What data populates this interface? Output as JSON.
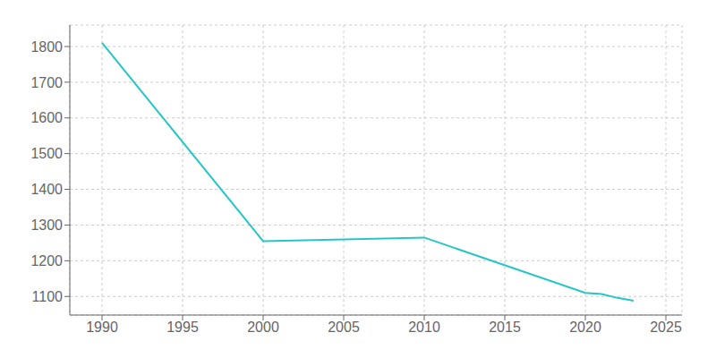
{
  "chart_data": {
    "type": "line",
    "x": [
      1990,
      2000,
      2010,
      2020,
      2021,
      2022,
      2023
    ],
    "values": [
      1810,
      1255,
      1265,
      1110,
      1107,
      1096,
      1088
    ],
    "color": "#26c6c6",
    "xlim": [
      1988,
      2026
    ],
    "ylim": [
      1048,
      1860
    ],
    "xticks": [
      1990,
      1995,
      2000,
      2005,
      2010,
      2015,
      2020,
      2025
    ],
    "yticks": [
      1100,
      1200,
      1300,
      1400,
      1500,
      1600,
      1700,
      1800
    ],
    "grid": true
  }
}
